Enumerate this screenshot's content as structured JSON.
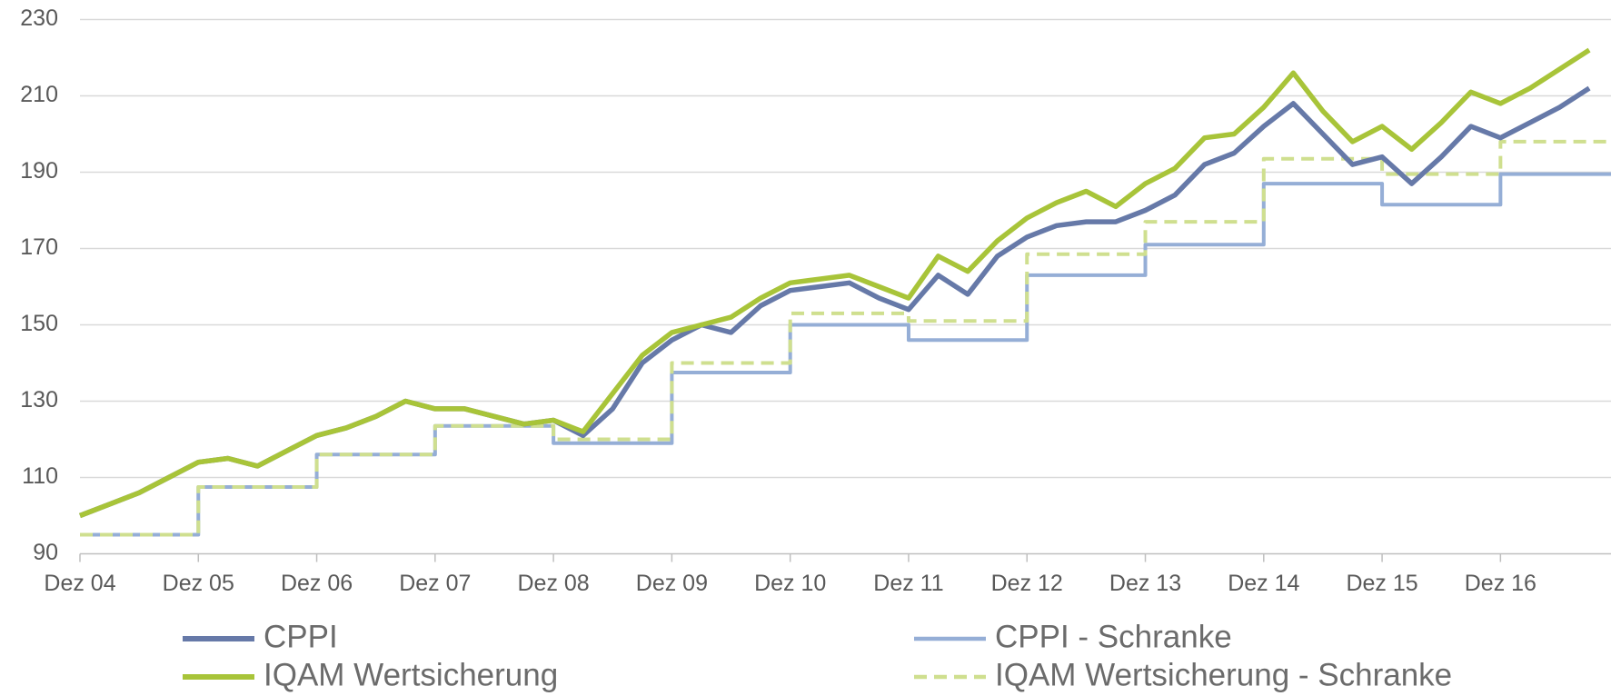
{
  "chart_data": {
    "type": "line",
    "categories": [
      "Dez 04",
      null,
      null,
      null,
      "Dez 05",
      null,
      null,
      null,
      "Dez 06",
      null,
      null,
      null,
      "Dez 07",
      null,
      null,
      null,
      "Dez 08",
      null,
      null,
      null,
      "Dez 09",
      null,
      null,
      null,
      "Dez 10",
      null,
      null,
      null,
      "Dez 11",
      null,
      null,
      null,
      "Dez 12",
      null,
      null,
      null,
      "Dez 13",
      null,
      null,
      null,
      "Dez 14",
      null,
      null,
      null,
      "Dez 15",
      null,
      null,
      null,
      "Dez 16",
      null,
      null,
      null
    ],
    "series": [
      {
        "name": "CPPI - Schranke",
        "color": "#95aed6",
        "step": true,
        "dash": false,
        "values": [
          95,
          95,
          95,
          95,
          107.5,
          107.5,
          107.5,
          107.5,
          116,
          116,
          116,
          116,
          123.5,
          123.5,
          123.5,
          123.5,
          119,
          119,
          119,
          119,
          137.5,
          137.5,
          137.5,
          137.5,
          150,
          150,
          150,
          150,
          146,
          146,
          146,
          146,
          163,
          163,
          163,
          163,
          171,
          171,
          171,
          171,
          187,
          187,
          187,
          187,
          181.5,
          181.5,
          181.5,
          181.5,
          189.5,
          189.5,
          189.5,
          189.5
        ]
      },
      {
        "name": "IQAM Wertsicherung - Schranke",
        "color": "#cfdf8f",
        "step": true,
        "dash": true,
        "values": [
          95,
          95,
          95,
          95,
          107.5,
          107.5,
          107.5,
          107.5,
          116,
          116,
          116,
          116,
          123.5,
          123.5,
          123.5,
          123.5,
          120,
          120,
          120,
          120,
          140,
          140,
          140,
          140,
          153,
          153,
          153,
          153,
          151,
          151,
          151,
          151,
          168.5,
          168.5,
          168.5,
          168.5,
          177,
          177,
          177,
          177,
          193.5,
          193.5,
          193.5,
          193.5,
          189.5,
          189.5,
          189.5,
          189.5,
          198,
          198,
          198,
          198
        ]
      },
      {
        "name": "CPPI",
        "color": "#6679a8",
        "step": false,
        "dash": false,
        "values": [
          100,
          103,
          106,
          110,
          114,
          115,
          113,
          117,
          121,
          123,
          126,
          130,
          128,
          128,
          126,
          124,
          125,
          121,
          128,
          140,
          146,
          150,
          148,
          155,
          159,
          160,
          161,
          157,
          154,
          163,
          158,
          168,
          173,
          176,
          177,
          177,
          180,
          184,
          192,
          195,
          202,
          208,
          200,
          192,
          194,
          187,
          194,
          202,
          199,
          203,
          207,
          212
        ]
      },
      {
        "name": "IQAM Wertsicherung",
        "color": "#a8c439",
        "step": false,
        "dash": false,
        "values": [
          100,
          103,
          106,
          110,
          114,
          115,
          113,
          117,
          121,
          123,
          126,
          130,
          128,
          128,
          126,
          124,
          125,
          122,
          132,
          142,
          148,
          150,
          152,
          157,
          161,
          162,
          163,
          160,
          157,
          168,
          164,
          172,
          178,
          182,
          185,
          181,
          187,
          191,
          199,
          200,
          207,
          216,
          206,
          198,
          202,
          196,
          203,
          211,
          208,
          212,
          217,
          222
        ]
      }
    ],
    "ylim": [
      90,
      230
    ],
    "yticks": [
      90,
      110,
      130,
      150,
      170,
      190,
      210,
      230
    ],
    "grid": true
  }
}
